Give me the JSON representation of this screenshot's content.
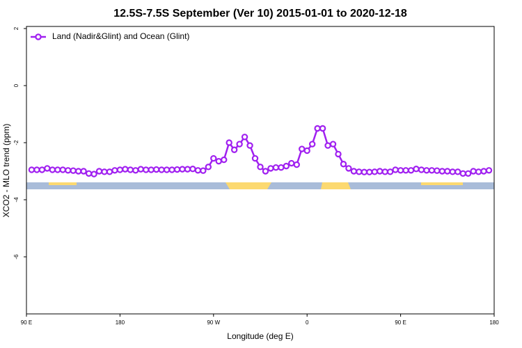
{
  "chart_data": {
    "type": "line",
    "title": "12.5S-7.5S September (Ver 10)   2015-01-01 to 2020-12-18",
    "xlabel": "Longitude (deg E)",
    "ylabel": "XCO2 - MLO trend (ppm)",
    "x": [
      95,
      100,
      105,
      110,
      115,
      120,
      125,
      130,
      135,
      140,
      145,
      150,
      155,
      160,
      165,
      170,
      175,
      180,
      185,
      190,
      195,
      200,
      205,
      210,
      215,
      220,
      225,
      230,
      235,
      240,
      245,
      250,
      255,
      260,
      265,
      270,
      275,
      280,
      285,
      290,
      295,
      300,
      305,
      310,
      315,
      320,
      325,
      330,
      335,
      340,
      345,
      350,
      355,
      360,
      365,
      370,
      375,
      380,
      385,
      390,
      395,
      400,
      405,
      410,
      415,
      420,
      425,
      430,
      435,
      440,
      445,
      450,
      455,
      460,
      465,
      470,
      475,
      480,
      485,
      490,
      495,
      500,
      505,
      510,
      515,
      520,
      525,
      530,
      535
    ],
    "series": [
      {
        "name": "Land (Nadir&Glint) and Ocean (Glint)",
        "color": "#a020f0",
        "values": [
          -2.95,
          -2.95,
          -2.95,
          -2.9,
          -2.95,
          -2.95,
          -2.95,
          -2.97,
          -2.98,
          -3.0,
          -3.0,
          -3.08,
          -3.1,
          -3.0,
          -3.02,
          -3.02,
          -2.97,
          -2.95,
          -2.93,
          -2.95,
          -2.97,
          -2.93,
          -2.95,
          -2.95,
          -2.94,
          -2.95,
          -2.95,
          -2.95,
          -2.94,
          -2.93,
          -2.93,
          -2.92,
          -2.97,
          -2.98,
          -2.85,
          -2.55,
          -2.65,
          -2.6,
          -2.0,
          -2.25,
          -2.05,
          -1.8,
          -2.1,
          -2.55,
          -2.85,
          -3.0,
          -2.9,
          -2.87,
          -2.87,
          -2.82,
          -2.72,
          -2.77,
          -2.22,
          -2.28,
          -2.05,
          -1.5,
          -1.5,
          -2.1,
          -2.05,
          -2.4,
          -2.75,
          -2.9,
          -3.0,
          -3.02,
          -3.03,
          -3.03,
          -3.02,
          -3.0,
          -3.02,
          -3.02,
          -2.95,
          -2.97,
          -2.97,
          -2.97,
          -2.92,
          -2.95,
          -2.97,
          -2.97,
          -2.98,
          -3.0,
          -3.0,
          -3.02,
          -3.02,
          -3.08,
          -3.08,
          -3.0,
          -3.02,
          -3.0,
          -2.97
        ]
      }
    ],
    "xlim": [
      90,
      540
    ],
    "xticks": [
      {
        "value": 90,
        "label": "90 E"
      },
      180,
      {
        "value": 270,
        "label": "90 W"
      },
      {
        "value": 360,
        "label": "0"
      },
      {
        "value": 450,
        "label": "90 E"
      },
      {
        "value": 540,
        "label": "180"
      }
    ],
    "ylim": [
      -8,
      2
    ],
    "yticks": [
      2,
      0,
      -2,
      -4,
      -6
    ],
    "legend": "top-left"
  }
}
